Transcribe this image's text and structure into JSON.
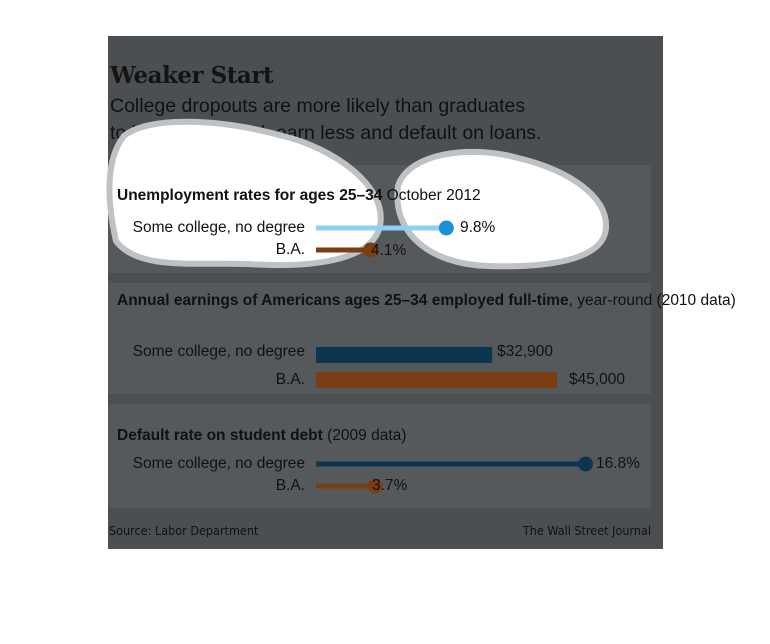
{
  "header": {
    "title": "Weaker Start",
    "subtitle_line1": "College dropouts are more likely than graduates",
    "subtitle_line2": "to be unemployed, earn less and default on loans."
  },
  "footer": {
    "source": "Source: Labor Department",
    "credit": "The Wall Street Journal"
  },
  "colors": {
    "card_bg": "#4b4f52",
    "panel_bg": "#55595c",
    "some_college": "#0c3550",
    "ba": "#7a3e14"
  },
  "chart_data": [
    {
      "type": "bar",
      "title": "Unemployment rates for ages 25–34",
      "subtitle": "October 2012",
      "categories": [
        "Some college, no degree",
        "B.A."
      ],
      "values": [
        9.8,
        4.1
      ],
      "value_labels": [
        "9.8%",
        "4.1%"
      ],
      "style": "lollipop",
      "xlim": [
        0,
        20
      ]
    },
    {
      "type": "bar",
      "title": "Annual earnings of Americans ages 25–34 employed full-time",
      "subtitle": ", year-round (2010 data)",
      "categories": [
        "Some college, no degree",
        "B.A."
      ],
      "values": [
        32900,
        45000
      ],
      "value_labels": [
        "$32,900",
        "$45,000"
      ],
      "style": "bar",
      "xlim": [
        0,
        45000
      ]
    },
    {
      "type": "bar",
      "title": "Default rate on student debt",
      "subtitle": "(2009 data)",
      "categories": [
        "Some college, no degree",
        "B.A."
      ],
      "values": [
        16.8,
        3.7
      ],
      "value_labels": [
        "16.8%",
        "3.7%"
      ],
      "style": "lollipop",
      "xlim": [
        0,
        20
      ]
    }
  ]
}
